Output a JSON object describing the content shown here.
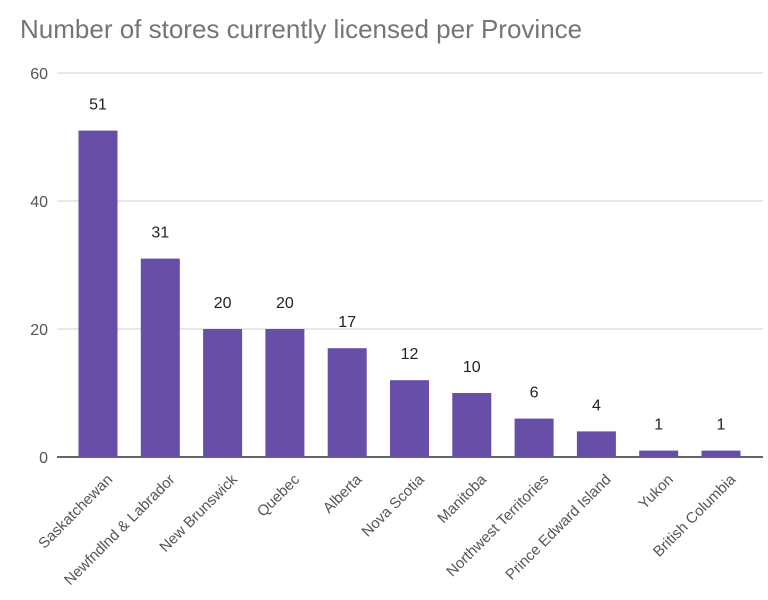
{
  "chart_data": {
    "type": "bar",
    "title": "Number of stores currently licensed per Province",
    "categories": [
      "Saskatchewan",
      "Newfndlnd & Labrador",
      "New Brunswick",
      "Quebec",
      "Alberta",
      "Nova Scotia",
      "Manitoba",
      "Northwest Territories",
      "Prince Edward Island",
      "Yukon",
      "British Columbia"
    ],
    "values": [
      51,
      31,
      20,
      20,
      17,
      12,
      10,
      6,
      4,
      1,
      1
    ],
    "xlabel": "",
    "ylabel": "",
    "ylim": [
      0,
      60
    ],
    "yticks": [
      0,
      20,
      40,
      60
    ],
    "grid": true,
    "legend": "none",
    "bar_color": "#674ea7",
    "data_labels": true
  }
}
